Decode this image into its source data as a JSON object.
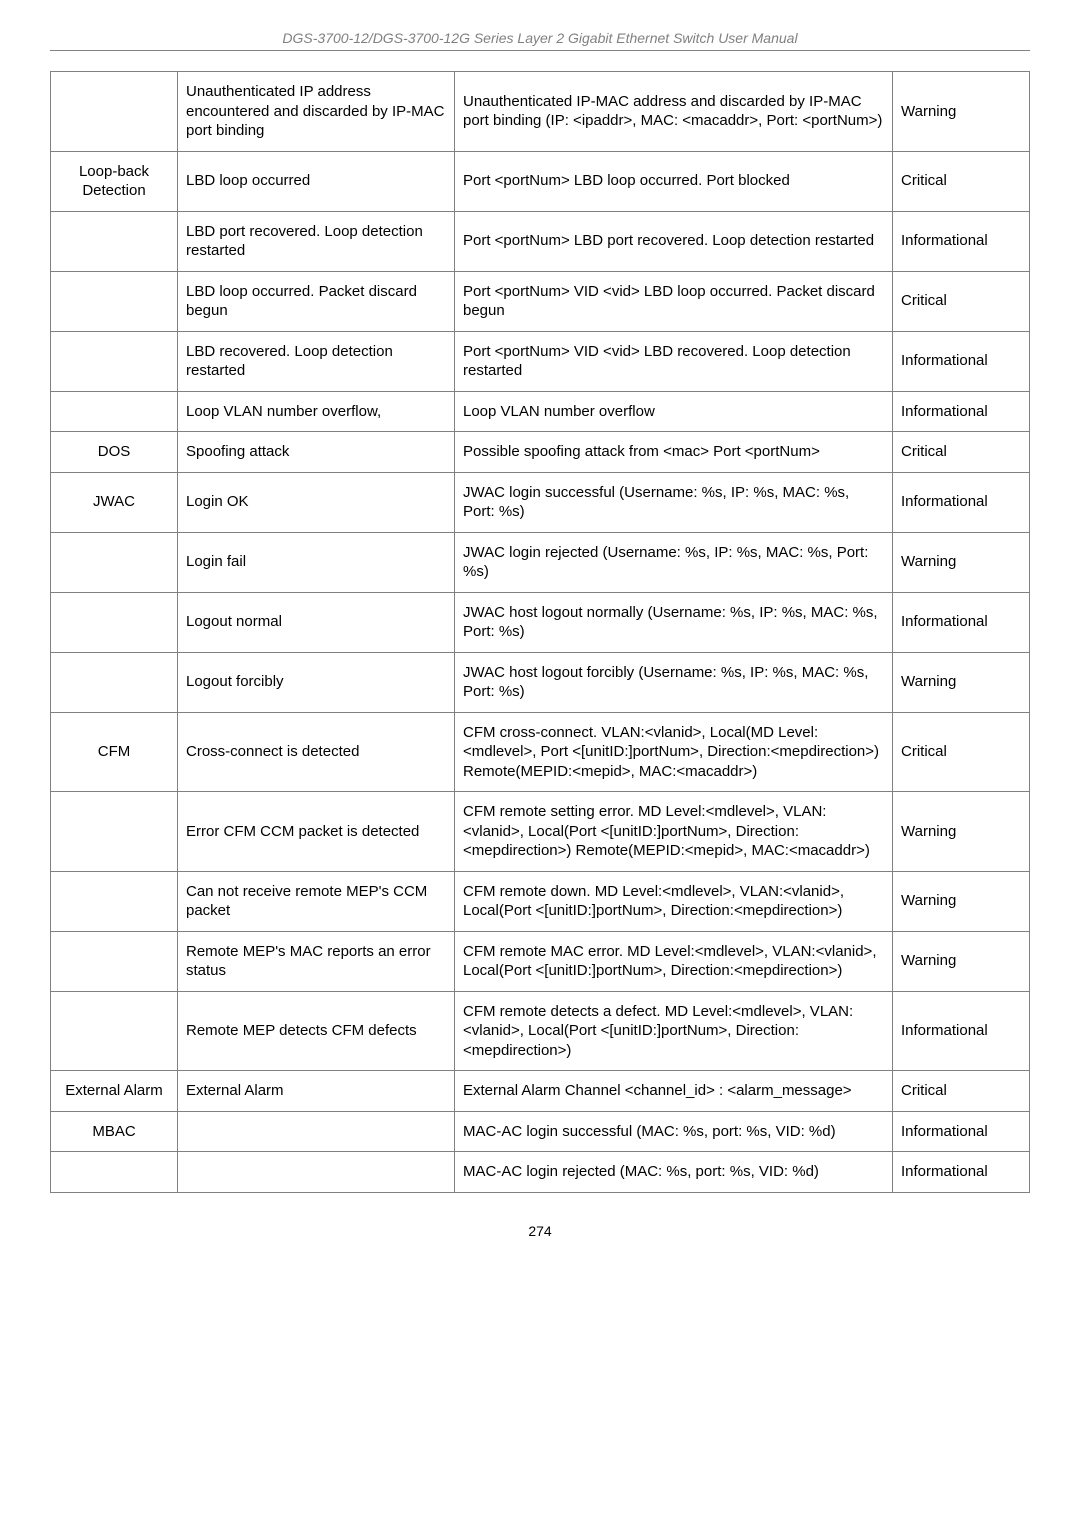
{
  "header": "DGS-3700-12/DGS-3700-12G Series Layer 2 Gigabit Ethernet Switch User Manual",
  "page_number": "274",
  "rows": [
    {
      "cat": "",
      "event": "Unauthenticated IP address encountered and discarded by IP-MAC port binding",
      "desc": "Unauthenticated IP-MAC address and discarded by IP-MAC port binding (IP: <ipaddr>, MAC: <macaddr>, Port: <portNum>)",
      "sev": "Warning"
    },
    {
      "cat": "Loop-back Detection",
      "event": "LBD loop occurred",
      "desc": "Port <portNum> LBD loop occurred. Port blocked",
      "sev": "Critical"
    },
    {
      "cat": "",
      "event": "LBD port recovered. Loop detection restarted",
      "desc": "Port <portNum> LBD port recovered. Loop detection restarted",
      "sev": "Informational"
    },
    {
      "cat": "",
      "event": "LBD loop occurred. Packet discard begun",
      "desc": "Port <portNum> VID <vid> LBD loop occurred. Packet discard begun",
      "sev": "Critical"
    },
    {
      "cat": "",
      "event": "LBD recovered. Loop detection restarted",
      "desc": "Port <portNum> VID <vid> LBD recovered. Loop detection restarted",
      "sev": "Informational"
    },
    {
      "cat": "",
      "event": "Loop VLAN number overflow,",
      "desc": "Loop VLAN number overflow",
      "sev": "Informational"
    },
    {
      "cat": "DOS",
      "event": "Spoofing attack",
      "desc": "Possible spoofing attack from <mac> Port <portNum>",
      "sev": "Critical"
    },
    {
      "cat": "JWAC",
      "event": " Login OK",
      "desc": "JWAC login successful (Username: %s, IP: %s, MAC: %s, Port: %s)",
      "sev": "Informational"
    },
    {
      "cat": "",
      "event": " Login fail",
      "desc": "JWAC login rejected (Username: %s, IP: %s, MAC: %s, Port: %s)",
      "sev": "Warning"
    },
    {
      "cat": "",
      "event": " Logout normal",
      "desc": "JWAC host logout normally (Username: %s, IP: %s, MAC: %s, Port: %s)",
      "sev": "Informational"
    },
    {
      "cat": "",
      "event": " Logout forcibly",
      "desc": "JWAC host logout forcibly (Username: %s, IP: %s, MAC: %s, Port: %s)",
      "sev": "Warning"
    },
    {
      "cat": "CFM",
      "event": " Cross-connect is detected",
      "desc": "CFM cross-connect. VLAN:<vlanid>, Local(MD Level:<mdlevel>, Port <[unitID:]portNum>, Direction:<mepdirection>) Remote(MEPID:<mepid>, MAC:<macaddr>)",
      "sev": "Critical"
    },
    {
      "cat": "",
      "event": "Error CFM CCM packet is detected",
      "desc": "CFM remote setting error. MD Level:<mdlevel>, VLAN:<vlanid>, Local(Port <[unitID:]portNum>, Direction:<mepdirection>) Remote(MEPID:<mepid>, MAC:<macaddr>)",
      "sev": "Warning"
    },
    {
      "cat": "",
      "event": "Can not receive remote MEP's CCM packet",
      "desc": "CFM remote down. MD Level:<mdlevel>, VLAN:<vlanid>, Local(Port <[unitID:]portNum>, Direction:<mepdirection>)",
      "sev": "Warning"
    },
    {
      "cat": "",
      "event": "Remote MEP's MAC reports an error status",
      "desc": "CFM remote MAC error. MD Level:<mdlevel>, VLAN:<vlanid>, Local(Port <[unitID:]portNum>, Direction:<mepdirection>)",
      "sev": "Warning"
    },
    {
      "cat": "",
      "event": "Remote MEP detects CFM defects",
      "desc": "CFM remote detects a defect. MD Level:<mdlevel>, VLAN:<vlanid>, Local(Port <[unitID:]portNum>, Direction:<mepdirection>)",
      "sev": "Informational"
    },
    {
      "cat": "External Alarm",
      "event": "External Alarm",
      "desc": "External Alarm Channel <channel_id> : <alarm_message>",
      "sev": "Critical"
    },
    {
      "cat": "MBAC",
      "event": "",
      "desc": "MAC-AC login successful (MAC: %s, port: %s, VID: %d)",
      "sev": "Informational"
    },
    {
      "cat": "",
      "event": "",
      "desc": "MAC-AC login rejected (MAC: %s, port: %s, VID: %d)",
      "sev": "Informational"
    }
  ]
}
